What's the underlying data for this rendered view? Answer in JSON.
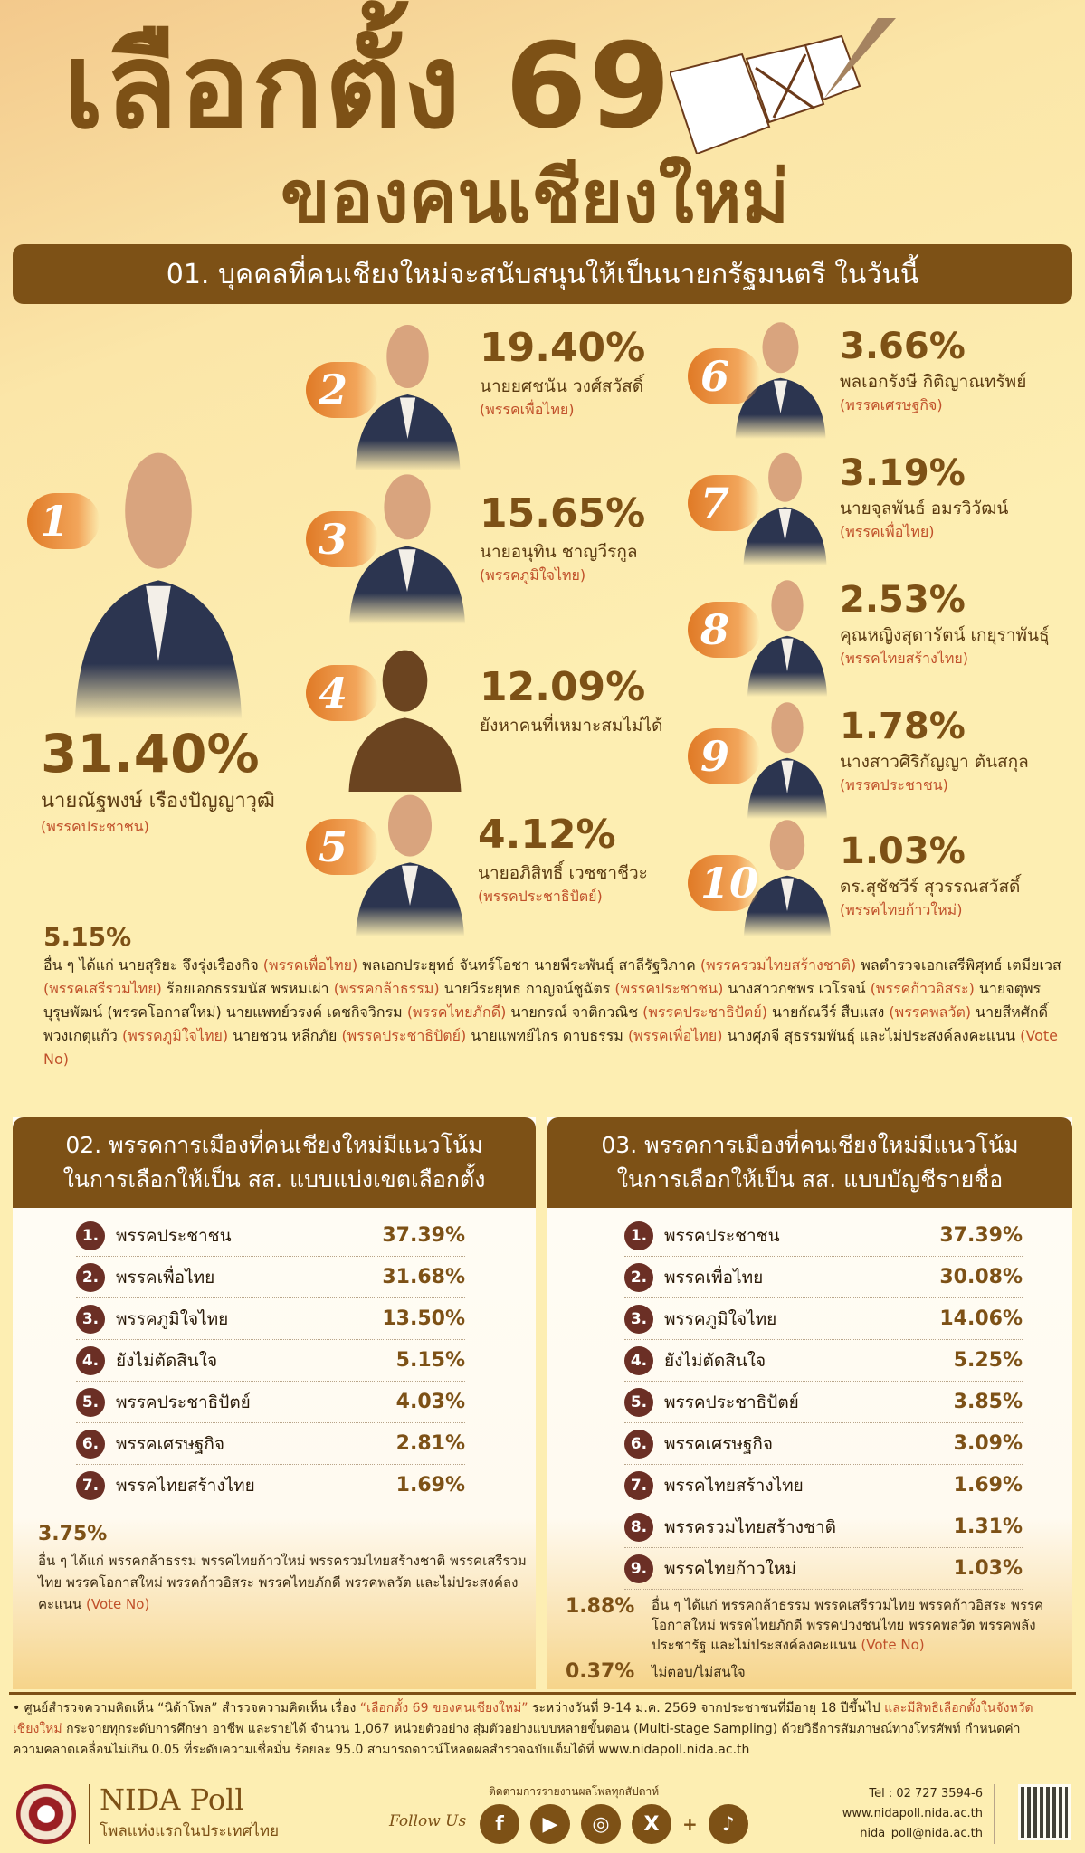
{
  "header": {
    "title_line1": "เลือกตั้ง 69",
    "title_line2": "ของคนเชียงใหม่",
    "section1_title": "01. บุคคลที่คนเชียงใหม่จะสนับสนุนให้เป็นนายกรัฐมนตรี ในวันนี้"
  },
  "colors": {
    "brand_brown": "#7d5116",
    "accent_orange": "#e07a26",
    "party_red": "#c0502a",
    "background": "#fdeeb2"
  },
  "candidates": [
    {
      "rank": "1",
      "pct": "31.40%",
      "name": "นายณัฐพงษ์ เรืองปัญญาวุฒิ",
      "party": "(พรรคประชาชน)"
    },
    {
      "rank": "2",
      "pct": "19.40%",
      "name": "นายยศชนัน วงศ์สวัสดิ์",
      "party": "(พรรคเพื่อไทย)"
    },
    {
      "rank": "3",
      "pct": "15.65%",
      "name": "นายอนุทิน ชาญวีรกูล",
      "party": "(พรรคภูมิใจไทย)"
    },
    {
      "rank": "4",
      "pct": "12.09%",
      "name": "ยังหาคนที่เหมาะสมไม่ได้",
      "party": ""
    },
    {
      "rank": "5",
      "pct": "4.12%",
      "name": "นายอภิสิทธิ์ เวชชาชีวะ",
      "party": "(พรรคประชาธิปัตย์)"
    },
    {
      "rank": "6",
      "pct": "3.66%",
      "name": "พลเอกรังษี กิติญาณทรัพย์",
      "party": "(พรรคเศรษฐกิจ)"
    },
    {
      "rank": "7",
      "pct": "3.19%",
      "name": "นายจุลพันธ์ อมรวิวัฒน์",
      "party": "(พรรคเพื่อไทย)"
    },
    {
      "rank": "8",
      "pct": "2.53%",
      "name": "คุณหญิงสุดารัตน์ เกยุราพันธุ์",
      "party": "(พรรคไทยสร้างไทย)"
    },
    {
      "rank": "9",
      "pct": "1.78%",
      "name": "นางสาวศิริกัญญา ตันสกุล",
      "party": "(พรรคประชาชน)"
    },
    {
      "rank": "10",
      "pct": "1.03%",
      "name": "ดร.สุชัชวีร์ สุวรรณสวัสดิ์",
      "party": "(พรรคไทยก้าวใหม่)"
    }
  ],
  "others1": {
    "pct": "5.15%",
    "segments": [
      [
        "อื่น ๆ ได้แก่ นายสุริยะ จึงรุ่งเรืองกิจ ",
        0
      ],
      [
        "(พรรคเพื่อไทย)",
        1
      ],
      [
        " พลเอกประยุทธ์ จันทร์โอชา นายพีระพันธุ์ สาลีรัฐวิภาค ",
        0
      ],
      [
        "(พรรครวมไทยสร้างชาติ)",
        1
      ],
      [
        " พลตำรวจเอกเสรีพิศุทธ์ เตมียเวส ",
        0
      ],
      [
        "(พรรคเสรีรวมไทย)",
        1
      ],
      [
        " ร้อยเอกธรรมนัส พรหมเผ่า ",
        0
      ],
      [
        "(พรรคกล้าธรรม)",
        1
      ],
      [
        " นายวีระยุทธ กาญจน์ชูฉัตร ",
        0
      ],
      [
        "(พรรคประชาชน)",
        1
      ],
      [
        " นางสาวกชพร เวโรจน์ ",
        0
      ],
      [
        "(พรรคก้าวอิสระ)",
        1
      ],
      [
        " นายจตุพร บุรุษพัฒน์ (พรรคโอกาสใหม่) นายแพทย์วรงค์ เดชกิจวิกรม ",
        0
      ],
      [
        "(พรรคไทยภักดี)",
        1
      ],
      [
        " นายกรณ์ จาติกวณิช ",
        0
      ],
      [
        "(พรรคประชาธิปัตย์)",
        1
      ],
      [
        " นายกัณวีร์ สืบแสง ",
        0
      ],
      [
        "(พรรคพลวัต)",
        1
      ],
      [
        " นายสีหศักดิ์ พวงเกตุแก้ว ",
        0
      ],
      [
        "(พรรคภูมิใจไทย)",
        1
      ],
      [
        " นายชวน หลีกภัย ",
        0
      ],
      [
        "(พรรคประชาธิปัตย์)",
        1
      ],
      [
        " นายแพทย์ไกร ดาบธรรม ",
        0
      ],
      [
        "(พรรคเพื่อไทย)",
        1
      ],
      [
        " นางศุภจี สุธรรมพันธุ์ และไม่ประสงค์ลงคะแนน ",
        0
      ],
      [
        "(Vote No)",
        1
      ]
    ]
  },
  "section2": {
    "title_line1": "02. พรรคการเมืองที่คนเชียงใหม่มีแนวโน้ม",
    "title_line2": "ในการเลือกให้เป็น สส. แบบแบ่งเขตเลือกตั้ง",
    "items": [
      [
        "1.",
        "พรรคประชาชน",
        "37.39%"
      ],
      [
        "2.",
        "พรรคเพื่อไทย",
        "31.68%"
      ],
      [
        "3.",
        "พรรคภูมิใจไทย",
        "13.50%"
      ],
      [
        "4.",
        "ยังไม่ตัดสินใจ",
        "5.15%"
      ],
      [
        "5.",
        "พรรคประชาธิปัตย์",
        "4.03%"
      ],
      [
        "6.",
        "พรรคเศรษฐกิจ",
        "2.81%"
      ],
      [
        "7.",
        "พรรคไทยสร้างไทย",
        "1.69%"
      ]
    ],
    "others_pct": "3.75%",
    "others_text": "อื่น ๆ ได้แก่ พรรคกล้าธรรม  พรรคไทยก้าวใหม่ พรรครวมไทยสร้างชาติ พรรคเสรีรวมไทย พรรคโอกาสใหม่ พรรคก้าวอิสระ พรรคไทยภักดี พรรคพลวัต และไม่ประสงค์ลงคะแนน ",
    "others_vote_no": "(Vote No)"
  },
  "section3": {
    "title_line1": "03. พรรคการเมืองที่คนเชียงใหม่มีแนวโน้ม",
    "title_line2": "ในการเลือกให้เป็น สส. แบบบัญชีรายชื่อ",
    "items": [
      [
        "1.",
        "พรรคประชาชน",
        "37.39%"
      ],
      [
        "2.",
        "พรรคเพื่อไทย",
        "30.08%"
      ],
      [
        "3.",
        "พรรคภูมิใจไทย",
        "14.06%"
      ],
      [
        "4.",
        "ยังไม่ตัดสินใจ",
        "5.25%"
      ],
      [
        "5.",
        "พรรคประชาธิปัตย์",
        "3.85%"
      ],
      [
        "6.",
        "พรรคเศรษฐกิจ",
        "3.09%"
      ],
      [
        "7.",
        "พรรคไทยสร้างไทย",
        "1.69%"
      ],
      [
        "8.",
        "พรรครวมไทยสร้างชาติ",
        "1.31%"
      ],
      [
        "9.",
        "พรรคไทยก้าวใหม่",
        "1.03%"
      ]
    ],
    "others_pct": "1.88%",
    "others_text": "อื่น ๆ ได้แก่ พรรคกล้าธรรม พรรคเสรีรวมไทย พรรคก้าวอิสระ พรรคโอกาสใหม่ พรรคไทยภักดี พรรคปวงชนไทย พรรคพลวัต พรรคพลังประชารัฐ และไม่ประสงค์ลงคะแนน ",
    "others_vote_no": "(Vote No)",
    "no_answer_pct": "0.37%",
    "no_answer_text": "ไม่ตอบ/ไม่สนใจ"
  },
  "footer": {
    "note_a": "• ศูนย์สำรวจความคิดเห็น “นิด้าโพล” สำรวจความคิดเห็น เรื่อง ",
    "note_b": "“เลือกตั้ง 69 ของคนเชียงใหม่”",
    "note_c": " ระหว่างวันที่ 9-14 ม.ค. 2569 จากประชาชนที่มีอายุ 18 ปีขึ้นไป ",
    "note_d": "และมีสิทธิเลือกตั้งในจังหวัดเชียงใหม่",
    "note_e": " กระจายทุกระดับการศึกษา อาชีพ และรายได้ จำนวน 1,067 หน่วยตัวอย่าง สุ่มตัวอย่างแบบหลายขั้นตอน (Multi-stage Sampling) ด้วยวิธีการสัมภาษณ์ทางโทรศัพท์ กำหนดค่าความคลาดเคลื่อนไม่เกิน 0.05 ที่ระดับความเชื่อมั่น ร้อยละ 95.0 สามารถดาวน์โหลดผลสำรวจฉบับเต็มได้ที่ www.nidapoll.nida.ac.th",
    "brand": "NIDA Poll",
    "brand_sub": "โพลแห่งแรกในประเทศไทย",
    "follow_caption": "ติดตามการรายงานผลโพลทุกสัปดาห์",
    "follow_us": "Follow Us",
    "socials": [
      "facebook-icon",
      "youtube-icon",
      "instagram-icon",
      "x-icon",
      "tiktok-icon"
    ],
    "tel": "Tel : 02 727 3594-6",
    "website": "www.nidapoll.nida.ac.th",
    "email": "nida_poll@nida.ac.th"
  }
}
